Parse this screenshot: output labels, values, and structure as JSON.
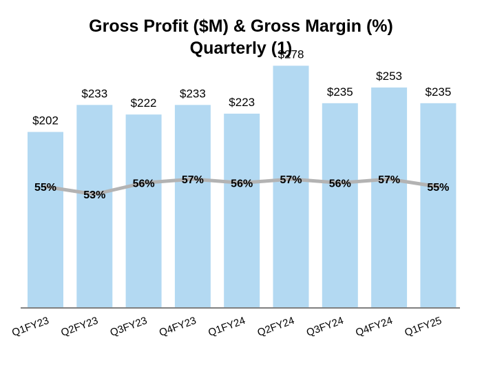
{
  "chart_data": {
    "type": "bar",
    "title": "Gross Profit ($M) & Gross Margin (%)",
    "subtitle": "Quarterly (1)",
    "categories": [
      "Q1FY23",
      "Q2FY23",
      "Q3FY23",
      "Q4FY23",
      "Q1FY24",
      "Q2FY24",
      "Q3FY24",
      "Q4FY24",
      "Q1FY25"
    ],
    "series": [
      {
        "type": "bar",
        "values": [
          202,
          233,
          222,
          233,
          223,
          278,
          235,
          253,
          235
        ],
        "labels": [
          "$202",
          "$233",
          "$222",
          "$233",
          "$223",
          "$278",
          "$235",
          "$253",
          "$235"
        ]
      },
      {
        "type": "line",
        "values": [
          55,
          53,
          56,
          57,
          56,
          57,
          56,
          57,
          55
        ],
        "labels": [
          "55%",
          "53%",
          "56%",
          "57%",
          "56%",
          "57%",
          "56%",
          "57%",
          "55%"
        ]
      }
    ],
    "grid": false,
    "colors": {
      "bar": "#b3d9f2",
      "line": "#b3b3b3",
      "axis": "#7f7f7f"
    }
  }
}
